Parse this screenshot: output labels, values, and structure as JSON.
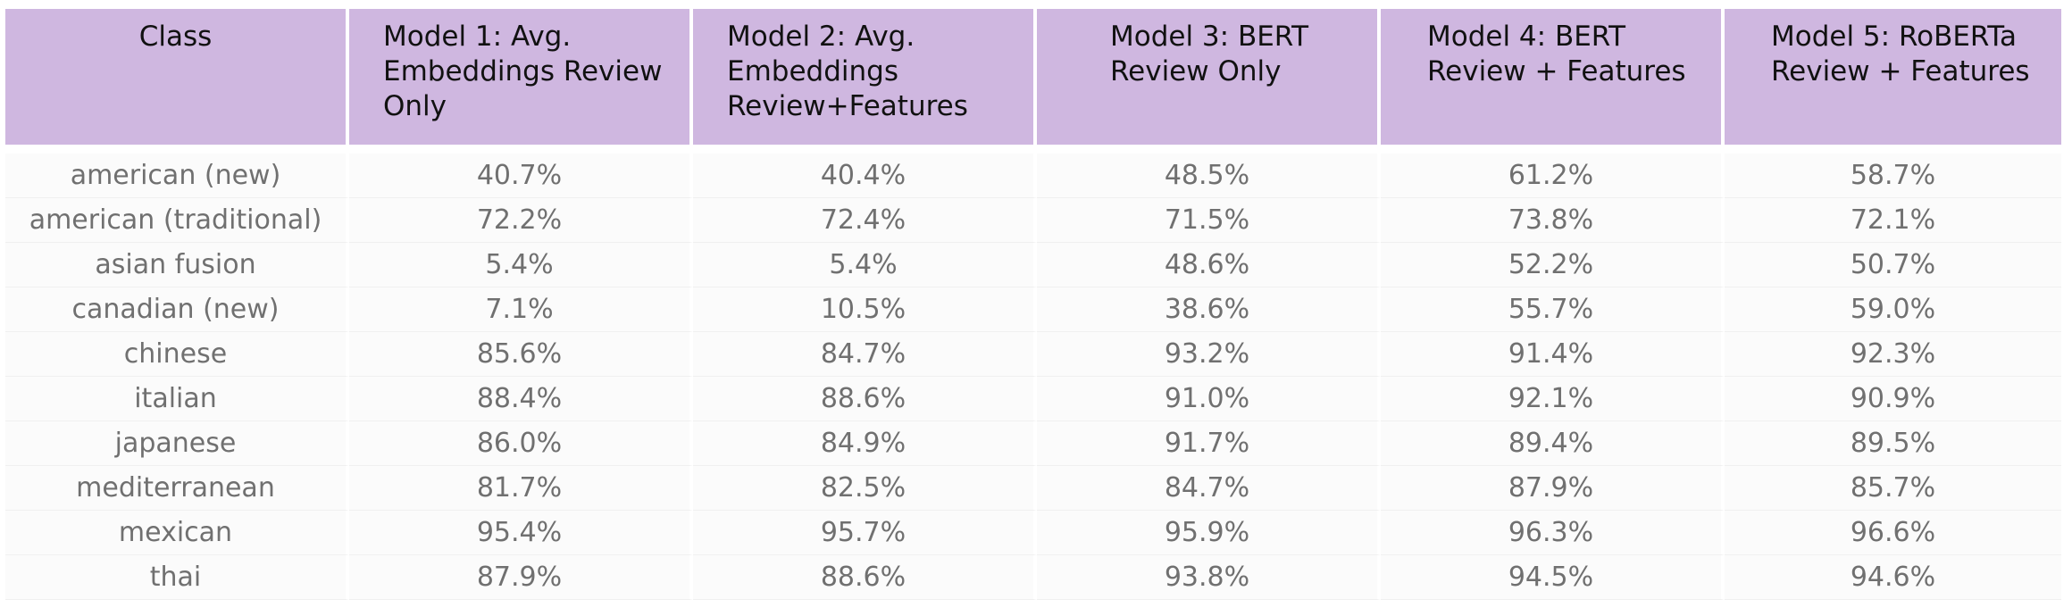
{
  "table": {
    "headers": [
      "Class",
      "Model 1: Avg. Embeddings Review Only",
      "Model 2: Avg. Embeddings Review+Features",
      "Model 3: BERT Review Only",
      "Model 4: BERT Review + Features",
      "Model 5: RoBERTa Review + Features"
    ],
    "header_lines": [
      [
        "Class"
      ],
      [
        "Model 1: Avg.",
        "Embeddings Review",
        "Only"
      ],
      [
        "Model 2: Avg.",
        "Embeddings",
        "Review+Features"
      ],
      [
        "Model 3: BERT",
        "Review Only"
      ],
      [
        "Model 4: BERT",
        "Review + Features"
      ],
      [
        "Model 5: RoBERTa",
        "Review + Features"
      ]
    ],
    "rows": [
      [
        "american (new)",
        "40.7%",
        "40.4%",
        "48.5%",
        "61.2%",
        "58.7%"
      ],
      [
        "american (traditional)",
        "72.2%",
        "72.4%",
        "71.5%",
        "73.8%",
        "72.1%"
      ],
      [
        "asian fusion",
        "5.4%",
        "5.4%",
        "48.6%",
        "52.2%",
        "50.7%"
      ],
      [
        "canadian (new)",
        "7.1%",
        "10.5%",
        "38.6%",
        "55.7%",
        "59.0%"
      ],
      [
        "chinese",
        "85.6%",
        "84.7%",
        "93.2%",
        "91.4%",
        "92.3%"
      ],
      [
        "italian",
        "88.4%",
        "88.6%",
        "91.0%",
        "92.1%",
        "90.9%"
      ],
      [
        "japanese",
        "86.0%",
        "84.9%",
        "91.7%",
        "89.4%",
        "89.5%"
      ],
      [
        "mediterranean",
        "81.7%",
        "82.5%",
        "84.7%",
        "87.9%",
        "85.7%"
      ],
      [
        "mexican",
        "95.4%",
        "95.7%",
        "95.9%",
        "96.3%",
        "96.6%"
      ],
      [
        "thai",
        "87.9%",
        "88.6%",
        "93.8%",
        "94.5%",
        "94.6%"
      ]
    ]
  },
  "colors": {
    "header_background": "#cfb7e0",
    "header_text": "#111111",
    "cell_text": "#707070",
    "cell_background": "#fbfbfb"
  }
}
